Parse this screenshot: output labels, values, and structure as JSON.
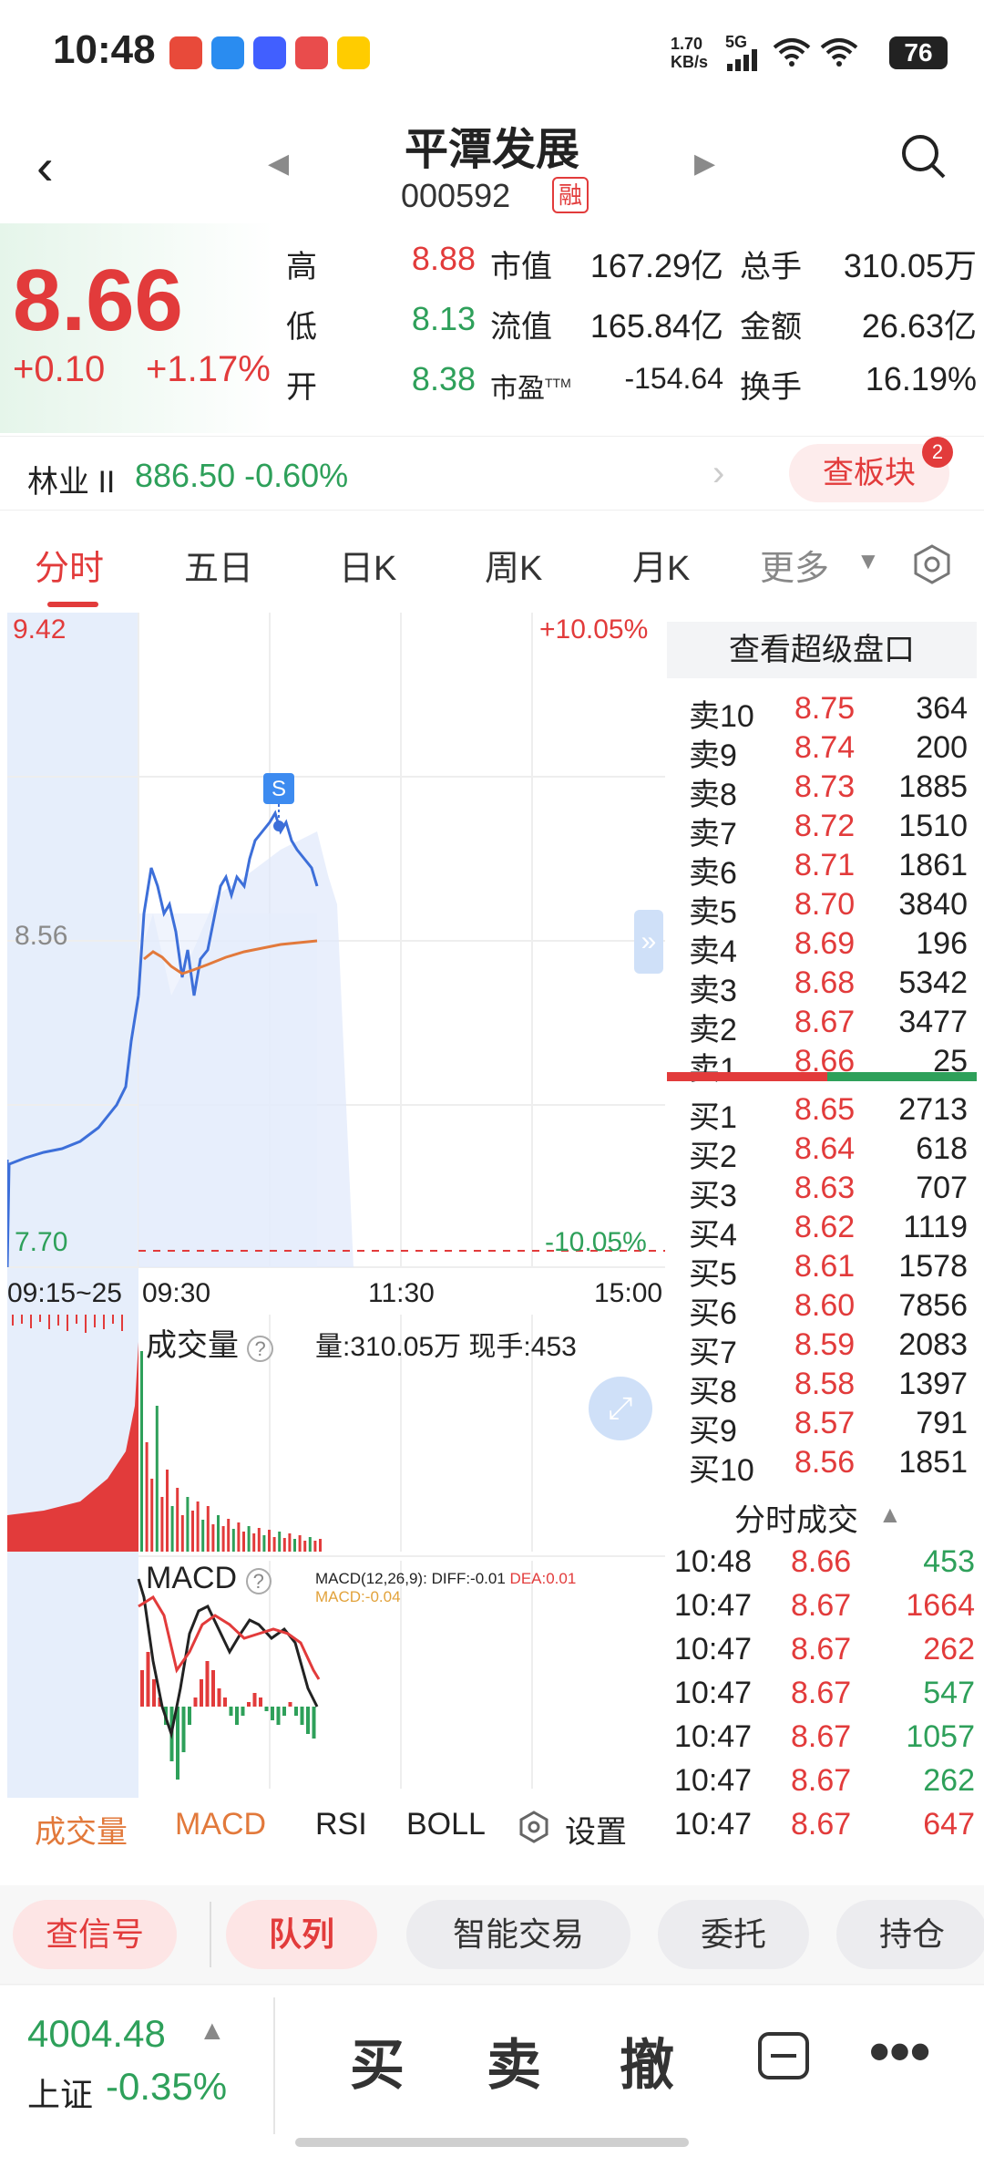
{
  "status": {
    "time": "10:48",
    "net_speed": "1.70",
    "net_unit": "KB/s",
    "signal": "5G",
    "battery": "76"
  },
  "header": {
    "title": "平潭发展",
    "code": "000592",
    "margin_badge": "融"
  },
  "quote": {
    "price": "8.66",
    "change": "+0.10",
    "change_pct": "+1.17%",
    "high_label": "高",
    "high": "8.88",
    "low_label": "低",
    "low": "8.13",
    "open_label": "开",
    "open": "8.38",
    "metrics": [
      {
        "label": "市值",
        "value": "167.29亿",
        "label2": "总手",
        "value2": "310.05万"
      },
      {
        "label": "流值",
        "value": "165.84亿",
        "label2": "金额",
        "value2": "26.63亿"
      },
      {
        "label": "市盈",
        "sup": "TTM",
        "value": "-154.64",
        "label2": "换手",
        "value2": "16.19%"
      }
    ]
  },
  "sector": {
    "name": "林业 II",
    "value": "886.50 -0.60%",
    "button": "查板块",
    "badge": "2"
  },
  "tabs": {
    "items": [
      "分时",
      "五日",
      "日K",
      "周K",
      "月K",
      "更多"
    ]
  },
  "chart": {
    "top_price": "9.42",
    "top_pct": "+10.05%",
    "mid_price": "8.56",
    "bottom_price": "7.70",
    "bottom_pct": "-10.05%",
    "times": [
      "09:15~25",
      "09:30",
      "11:30",
      "15:00"
    ],
    "signal_marker": "S",
    "volume_title": "成交量",
    "volume_info": "量:310.05万 现手:453",
    "macd_title": "MACD",
    "macd_params": "MACD(12,26,9):",
    "macd_diff": "DIFF:-0.01",
    "macd_dea": "DEA:0.01",
    "macd_macd": "MACD:-0.04"
  },
  "book": {
    "title": "查看超级盘口",
    "sells": [
      {
        "label": "卖10",
        "price": "8.75",
        "vol": "364"
      },
      {
        "label": "卖9",
        "price": "8.74",
        "vol": "200"
      },
      {
        "label": "卖8",
        "price": "8.73",
        "vol": "1885"
      },
      {
        "label": "卖7",
        "price": "8.72",
        "vol": "1510"
      },
      {
        "label": "卖6",
        "price": "8.71",
        "vol": "1861"
      },
      {
        "label": "卖5",
        "price": "8.70",
        "vol": "3840"
      },
      {
        "label": "卖4",
        "price": "8.69",
        "vol": "196"
      },
      {
        "label": "卖3",
        "price": "8.68",
        "vol": "5342"
      },
      {
        "label": "卖2",
        "price": "8.67",
        "vol": "3477"
      },
      {
        "label": "卖1",
        "price": "8.66",
        "vol": "25"
      }
    ],
    "buys": [
      {
        "label": "买1",
        "price": "8.65",
        "vol": "2713"
      },
      {
        "label": "买2",
        "price": "8.64",
        "vol": "618"
      },
      {
        "label": "买3",
        "price": "8.63",
        "vol": "707"
      },
      {
        "label": "买4",
        "price": "8.62",
        "vol": "1119"
      },
      {
        "label": "买5",
        "price": "8.61",
        "vol": "1578"
      },
      {
        "label": "买6",
        "price": "8.60",
        "vol": "7856"
      },
      {
        "label": "买7",
        "price": "8.59",
        "vol": "2083"
      },
      {
        "label": "买8",
        "price": "8.58",
        "vol": "1397"
      },
      {
        "label": "买9",
        "price": "8.57",
        "vol": "791"
      },
      {
        "label": "买10",
        "price": "8.56",
        "vol": "1851"
      }
    ]
  },
  "trades": {
    "title": "分时成交",
    "rows": [
      {
        "time": "10:48",
        "price": "8.66",
        "vol": "453",
        "dir": "green"
      },
      {
        "time": "10:47",
        "price": "8.67",
        "vol": "1664",
        "dir": "red"
      },
      {
        "time": "10:47",
        "price": "8.67",
        "vol": "262",
        "dir": "red"
      },
      {
        "time": "10:47",
        "price": "8.67",
        "vol": "547",
        "dir": "green"
      },
      {
        "time": "10:47",
        "price": "8.67",
        "vol": "1057",
        "dir": "green"
      },
      {
        "time": "10:47",
        "price": "8.67",
        "vol": "262",
        "dir": "green"
      },
      {
        "time": "10:47",
        "price": "8.67",
        "vol": "647",
        "dir": "red"
      }
    ]
  },
  "indicators": {
    "items": [
      "成交量",
      "MACD",
      "RSI",
      "BOLL"
    ],
    "settings": "设置"
  },
  "actions": {
    "items": [
      "查信号",
      "队列",
      "智能交易",
      "委托",
      "持仓"
    ]
  },
  "bottom": {
    "index_value": "4004.48",
    "index_name": "上证",
    "index_change": "-0.35%",
    "buy": "买",
    "sell": "卖",
    "cancel": "撤"
  },
  "colors": {
    "up": "#e23b3b",
    "down": "#2ea05a",
    "line": "#3d6fd9",
    "avg": "#e2793b"
  }
}
